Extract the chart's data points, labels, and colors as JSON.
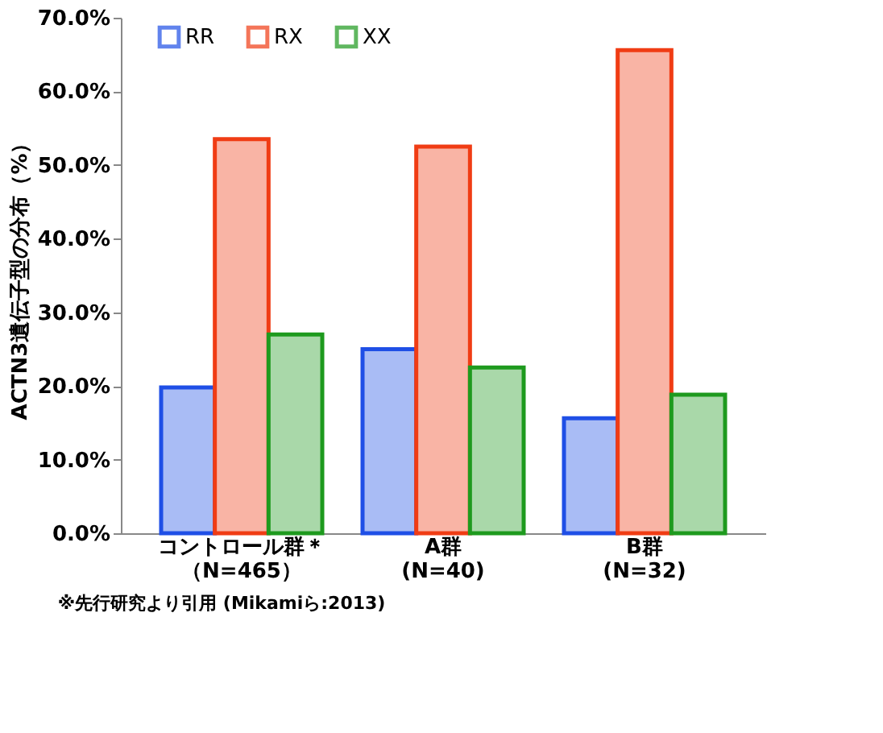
{
  "chart_data": {
    "type": "bar",
    "ylabel": "ACTN3遺伝子型の分布（%）",
    "categories": [
      "コントロール群＊（N=465）",
      "A群(N=40)",
      "B群(N=32)"
    ],
    "series": [
      {
        "name": "RR",
        "color": "#1f4fe6",
        "values": [
          19.8,
          25.0,
          15.6
        ]
      },
      {
        "name": "RX",
        "color": "#f03c14",
        "values": [
          53.5,
          52.5,
          65.6
        ]
      },
      {
        "name": "XX",
        "color": "#1e9a1e",
        "values": [
          27.0,
          22.5,
          18.8
        ]
      }
    ],
    "ylim": [
      0,
      70
    ],
    "yticks": [
      {
        "value": 0,
        "label": "0.0%"
      },
      {
        "value": 10,
        "label": "10.0%"
      },
      {
        "value": 20,
        "label": "20.0%"
      },
      {
        "value": 30,
        "label": "30.0%"
      },
      {
        "value": 40,
        "label": "40.0%"
      },
      {
        "value": 50,
        "label": "50.0%"
      },
      {
        "value": 60,
        "label": "60.0%"
      },
      {
        "value": 70,
        "label": "70.0%"
      }
    ],
    "grid": false,
    "legend": "top left",
    "annotations": [
      "※先行研究より引用 (Mikamiら:2013)"
    ]
  }
}
